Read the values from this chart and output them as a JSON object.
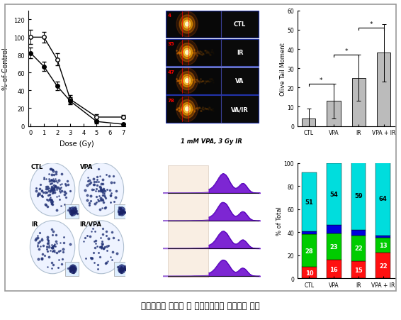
{
  "title": "후보물질의 도출과 이 후보물질들의 작용기전 연구",
  "line_chart": {
    "doses": [
      0,
      1,
      2,
      3,
      5,
      7
    ],
    "open_circle": [
      100,
      100,
      75,
      30,
      10,
      10
    ],
    "open_circle_err": [
      8,
      6,
      7,
      5,
      3,
      2
    ],
    "filled_circle": [
      82,
      67,
      45,
      28,
      5,
      2
    ],
    "filled_circle_err": [
      6,
      5,
      5,
      4,
      2,
      1
    ],
    "xlabel": "Dose (Gy)",
    "ylabel": "% of Control",
    "ylim": [
      0,
      130
    ],
    "xlim": [
      -0.2,
      7.2
    ]
  },
  "bar_chart": {
    "categories": [
      "CTL",
      "VPA",
      "IR",
      "VPA + IR"
    ],
    "values": [
      4,
      13,
      25,
      38
    ],
    "errors": [
      5,
      9,
      12,
      15
    ],
    "ylabel": "Olive Tail Moment",
    "ylim": [
      0,
      60
    ],
    "bar_color": "#bbbbbb"
  },
  "stacked_bar": {
    "categories": [
      "CTL",
      "VPA",
      "IR",
      "VPA + IR"
    ],
    "red": [
      10,
      16,
      15,
      22
    ],
    "green": [
      28,
      23,
      22,
      13
    ],
    "blue": [
      3,
      7,
      5,
      2
    ],
    "cyan": [
      51,
      54,
      59,
      64
    ],
    "ylabel": "% of Total",
    "ylim": [
      0,
      100
    ],
    "colors": [
      "#ff1010",
      "#00cc00",
      "#0000dd",
      "#00dddd"
    ]
  },
  "comet_labels": [
    "CTL",
    "IR",
    "VA",
    "VA/IR"
  ],
  "comet_numbers": [
    "4",
    "35",
    "47",
    "78"
  ],
  "vpa_label": "1 mM VPA, 3 Gy IR",
  "colony_labels": [
    "CTL",
    "VPA",
    "IR",
    "IR/VPA"
  ],
  "background_color": "#ffffff",
  "border_color": "#999999"
}
